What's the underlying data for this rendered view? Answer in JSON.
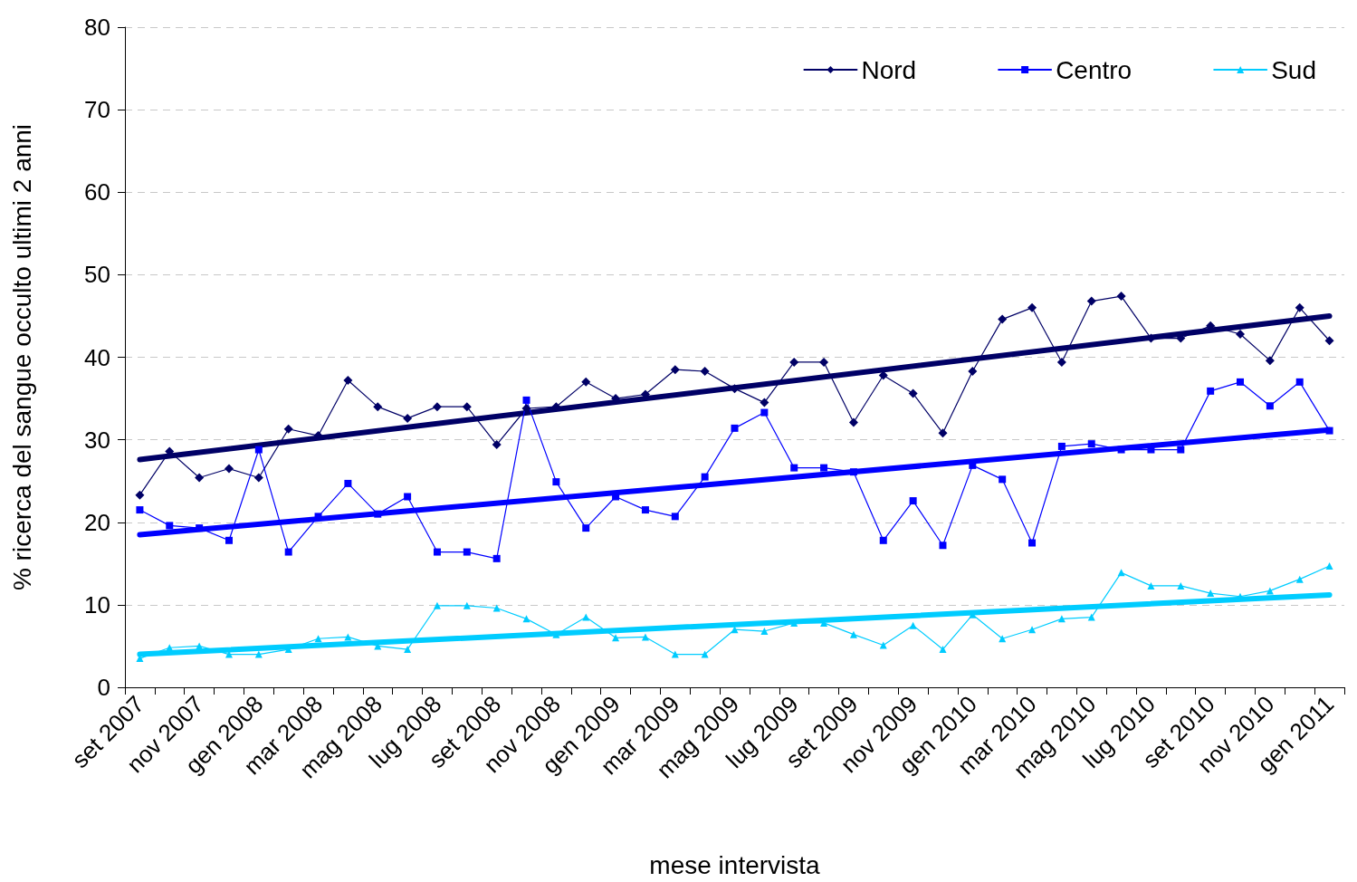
{
  "chart_data": {
    "type": "line",
    "xlabel": "mese intervista",
    "ylabel": "% ricerca del sangue occulto ultimi 2 anni",
    "categories": [
      "set 2007",
      null,
      "nov 2007",
      null,
      "gen 2008",
      null,
      "mar 2008",
      null,
      "mag 2008",
      null,
      "lug 2008",
      null,
      "set 2008",
      null,
      "nov 2008",
      null,
      "gen 2009",
      null,
      "mar 2009",
      null,
      "mag 2009",
      null,
      "lug 2009",
      null,
      "set 2009",
      null,
      "nov 2009",
      null,
      "gen 2010",
      null,
      "mar 2010",
      null,
      "mag 2010",
      null,
      "lug 2010",
      null,
      "set 2010",
      null,
      "nov 2010",
      null,
      "gen 2011"
    ],
    "series": [
      {
        "name": "Nord",
        "color": "#000066",
        "marker": "diamond",
        "values": [
          23.3,
          28.6,
          25.4,
          26.5,
          25.4,
          31.3,
          30.5,
          37.2,
          34,
          32.6,
          34,
          34,
          29.4,
          33.8,
          34,
          37,
          35,
          35.5,
          38.5,
          38.3,
          36.2,
          34.5,
          39.4,
          39.4,
          32.1,
          37.8,
          35.6,
          30.8,
          38.3,
          44.6,
          46,
          39.4,
          46.8,
          47.4,
          42.3,
          42.3,
          43.8,
          42.8,
          39.6,
          46,
          42
        ]
      },
      {
        "name": "Centro",
        "color": "#0000ff",
        "marker": "square",
        "values": [
          21.5,
          19.6,
          19.3,
          17.8,
          28.8,
          16.4,
          20.7,
          24.7,
          21,
          23.1,
          16.4,
          16.4,
          15.6,
          34.8,
          24.9,
          19.3,
          23.1,
          21.5,
          20.7,
          25.5,
          31.4,
          33.3,
          26.6,
          26.6,
          26.1,
          17.8,
          22.6,
          17.2,
          26.9,
          25.2,
          17.5,
          29.2,
          29.5,
          28.8,
          28.8,
          28.8,
          35.9,
          37,
          34.1,
          37,
          31.1
        ]
      },
      {
        "name": "Sud",
        "color": "#00ccff",
        "marker": "triangle",
        "values": [
          3.5,
          4.8,
          5,
          4,
          4,
          4.6,
          5.9,
          6.1,
          5,
          4.6,
          9.9,
          9.9,
          9.6,
          8.3,
          6.4,
          8.5,
          6,
          6.1,
          4,
          4,
          7,
          6.8,
          7.8,
          7.8,
          6.4,
          5.1,
          7.5,
          4.6,
          8.8,
          5.9,
          7,
          8.3,
          8.5,
          13.9,
          12.3,
          12.3,
          11.4,
          11,
          11.7,
          13.1,
          14.7
        ]
      },
      {
        "color": "#000066",
        "marker": "none",
        "x": [
          "set 2007",
          "gen 2011"
        ],
        "values": [
          27.6,
          45
        ]
      },
      {
        "color": "#0000ff",
        "marker": "none",
        "x": [
          "set 2007",
          "gen 2011"
        ],
        "values": [
          18.5,
          31.2
        ]
      },
      {
        "color": "#00ccff",
        "marker": "none",
        "x": [
          "set 2007",
          "gen 2011"
        ],
        "values": [
          4,
          11.2
        ]
      }
    ],
    "ylim": [
      0,
      80
    ],
    "yticks": [
      0,
      10,
      20,
      30,
      40,
      50,
      60,
      70,
      80
    ],
    "grid": "y",
    "legend": "top right"
  }
}
